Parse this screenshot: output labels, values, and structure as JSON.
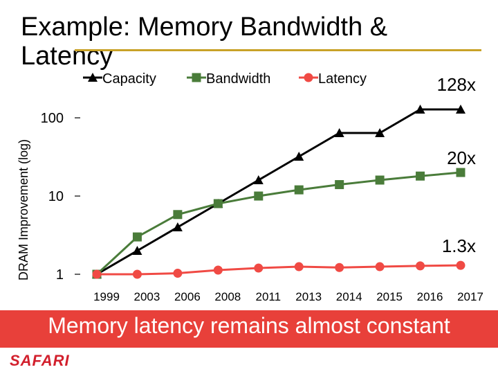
{
  "slide": {
    "title": "Example: Memory Bandwidth & Latency",
    "banner": "Memory latency remains almost constant",
    "logo": "SAFARI"
  },
  "chart_data": {
    "type": "line",
    "title": "",
    "xlabel": "",
    "ylabel": "DRAM Improvement (log)",
    "yscale": "log",
    "ylim": [
      1,
      128
    ],
    "yticks": [
      1,
      10,
      100
    ],
    "ytick_labels": [
      "1",
      "10",
      "100"
    ],
    "categories": [
      "1999",
      "2003",
      "2006",
      "2008",
      "2011",
      "2013",
      "2014",
      "2015",
      "2016",
      "2017"
    ],
    "legend_position": "top",
    "series": [
      {
        "name": "Capacity",
        "color": "#000000",
        "marker": "triangle",
        "values": [
          1,
          2,
          4,
          8,
          16,
          32,
          64,
          64,
          128,
          128
        ],
        "end_label": "128x"
      },
      {
        "name": "Bandwidth",
        "color": "#4a7c3a",
        "marker": "square",
        "values": [
          1,
          3,
          5.8,
          8,
          10,
          12,
          14,
          16,
          18,
          20
        ],
        "end_label": "20x"
      },
      {
        "name": "Latency",
        "color": "#f04a44",
        "marker": "circle",
        "values": [
          1,
          1,
          1.03,
          1.13,
          1.2,
          1.25,
          1.22,
          1.25,
          1.28,
          1.3
        ],
        "end_label": "1.3x"
      }
    ]
  }
}
